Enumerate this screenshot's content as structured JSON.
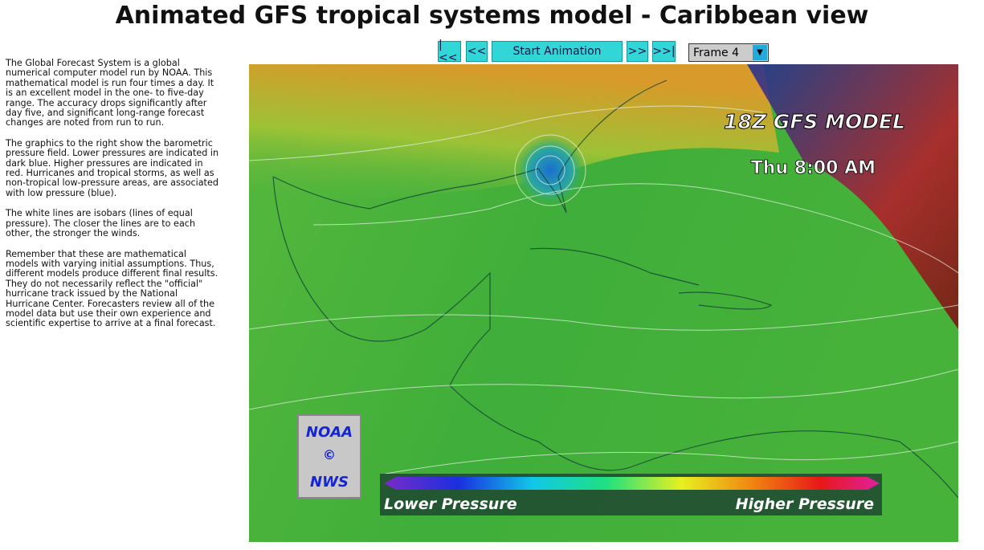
{
  "header": {
    "title": "Animated GFS tropical systems model - Caribbean view"
  },
  "description": {
    "paragraphs": [
      "The Global Forecast System is a global numerical computer model run by NOAA.  This mathematical model is run four times a day.  It is an excellent model in the one- to five-day range. The accuracy drops significantly after day five, and significant long-range forecast changes are noted from run to run.",
      "The graphics to the right show the barometric pressure field.  Lower pressures are indicated in dark blue. Higher pressures are indicated in red.  Hurricanes and tropical storms, as well as non-tropical low-pressure areas, are associated with low pressure (blue).",
      "The white lines are isobars (lines of equal pressure).  The closer the lines are to each other, the stronger the winds.",
      "Remember that these are mathematical models with varying initial assumptions.  Thus, different models produce different final results.  They do not necessarily reflect the \"official\" hurricane track issued by the National Hurricane Center.  Forecasters review all of the model data but use their own experience and scientific expertise to arrive at a final forecast."
    ]
  },
  "controls": {
    "first": "|<<",
    "prev": "<<",
    "play": "Start Animation",
    "next": ">>",
    "last": ">>|",
    "frame": "Frame 4"
  },
  "map": {
    "model": "18Z GFS MODEL",
    "time": "Thu 8:00 AM",
    "logo": {
      "top": "NOAA",
      "middle": "©",
      "bottom": "NWS"
    },
    "legend": {
      "low": "Lower Pressure",
      "high": "Higher Pressure"
    }
  }
}
